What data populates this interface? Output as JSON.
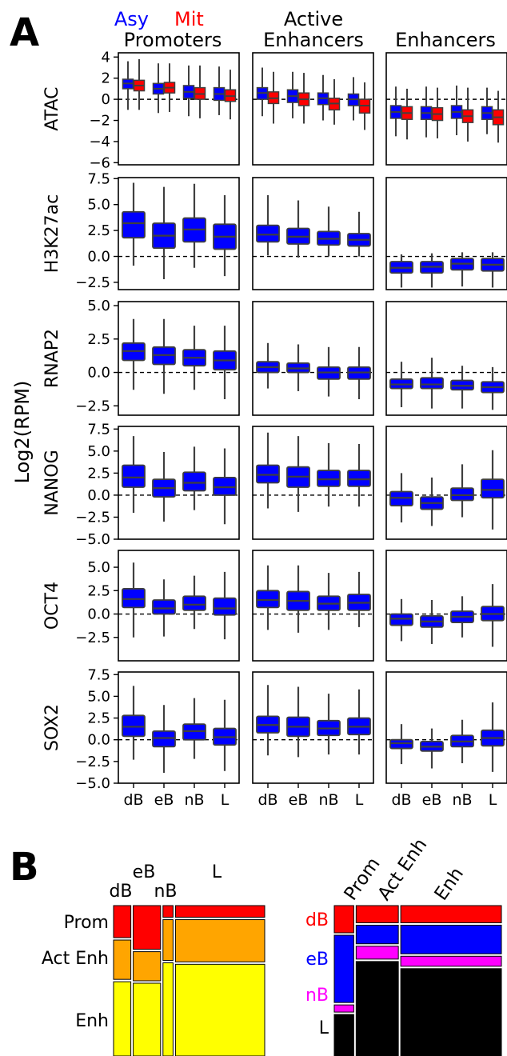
{
  "panel_labels": {
    "a": "A",
    "b": "B"
  },
  "legend": {
    "asy": "Asy",
    "mit": "Mit",
    "asy_color": "#0000ff",
    "mit_color": "#ff0000"
  },
  "chart_data": [
    {
      "type": "box",
      "ylabel": "Log2(RPM)",
      "columns": [
        "Promoters",
        "Active Enhancers",
        "Enhancers"
      ],
      "categories": [
        "dB",
        "eB",
        "nB",
        "L"
      ],
      "series": [
        {
          "name": "Asy",
          "color": "#0000ff"
        },
        {
          "name": "Mit",
          "color": "#ff0000"
        }
      ],
      "reference_line": 0,
      "rows": [
        {
          "name": "ATAC",
          "ylim": [
            -6.2,
            4.4
          ],
          "yticks": [
            4,
            2,
            0,
            -2,
            -4,
            -6
          ],
          "panels": [
            [
              [
                1.5,
                1.0,
                1.9,
                -1.0,
                3.6
              ],
              [
                1.3,
                0.8,
                1.8,
                -1.0,
                3.8
              ],
              [
                1.0,
                0.5,
                1.5,
                -1.3,
                3.4
              ],
              [
                1.1,
                0.6,
                1.6,
                -1.2,
                3.4
              ],
              [
                0.7,
                0.1,
                1.3,
                -1.6,
                3.2
              ],
              [
                0.5,
                0.0,
                1.1,
                -1.8,
                3.2
              ],
              [
                0.5,
                -0.1,
                1.1,
                -1.5,
                3.1
              ],
              [
                0.3,
                -0.2,
                0.9,
                -1.9,
                2.8
              ]
            ],
            [
              [
                0.6,
                0.0,
                1.1,
                -1.6,
                3.0
              ],
              [
                0.1,
                -0.4,
                0.7,
                -2.3,
                2.6
              ],
              [
                0.3,
                -0.3,
                0.9,
                -1.8,
                2.6
              ],
              [
                0.0,
                -0.6,
                0.6,
                -2.3,
                2.5
              ],
              [
                0.1,
                -0.5,
                0.6,
                -2.0,
                2.3
              ],
              [
                -0.4,
                -1.0,
                0.1,
                -2.4,
                1.9
              ],
              [
                0.0,
                -0.6,
                0.5,
                -2.0,
                2.1
              ],
              [
                -0.6,
                -1.3,
                0.0,
                -2.9,
                1.6
              ]
            ],
            [
              [
                -1.2,
                -1.8,
                -0.6,
                -3.5,
                1.2
              ],
              [
                -1.3,
                -1.9,
                -0.7,
                -3.8,
                1.0
              ],
              [
                -1.3,
                -1.9,
                -0.7,
                -3.6,
                1.2
              ],
              [
                -1.4,
                -2.0,
                -0.8,
                -3.7,
                1.1
              ],
              [
                -1.2,
                -1.8,
                -0.6,
                -3.4,
                1.3
              ],
              [
                -1.6,
                -2.2,
                -1.0,
                -4.0,
                1.1
              ],
              [
                -1.3,
                -1.9,
                -0.7,
                -3.3,
                1.1
              ],
              [
                -1.7,
                -2.4,
                -1.0,
                -4.1,
                0.8
              ]
            ]
          ]
        },
        {
          "name": "H3K27ac",
          "ylim": [
            -3.2,
            7.6
          ],
          "yticks": [
            7.5,
            5.0,
            2.5,
            0.0,
            -2.5
          ],
          "panels": [
            [
              [
                3.2,
                1.8,
                4.3,
                -0.9,
                7.1
              ]
            ],
            [
              [
                2.0,
                0.8,
                3.2,
                -2.2,
                6.7
              ]
            ],
            [
              [
                2.6,
                1.4,
                3.7,
                -1.1,
                7.0
              ]
            ],
            [
              [
                1.9,
                0.7,
                3.1,
                -1.9,
                5.9
              ]
            ]
          ],
          "panels_all": [
            [
              [
                3.2,
                1.8,
                4.3,
                -0.9,
                7.1
              ],
              [
                2.0,
                0.8,
                3.2,
                -2.2,
                6.7
              ],
              [
                2.6,
                1.4,
                3.7,
                -1.1,
                7.0
              ],
              [
                1.9,
                0.7,
                3.1,
                -1.9,
                5.9
              ]
            ],
            [
              [
                2.1,
                1.4,
                3.0,
                0.1,
                5.9
              ],
              [
                1.9,
                1.2,
                2.7,
                -0.1,
                5.4
              ],
              [
                1.7,
                1.1,
                2.4,
                0.0,
                4.8
              ],
              [
                1.6,
                1.0,
                2.2,
                0.0,
                4.3
              ]
            ],
            [
              [
                -1.1,
                -1.6,
                -0.5,
                -3.0,
                0.2
              ],
              [
                -1.0,
                -1.6,
                -0.5,
                -3.0,
                0.3
              ],
              [
                -0.7,
                -1.3,
                -0.2,
                -2.9,
                0.4
              ],
              [
                -0.8,
                -1.4,
                -0.2,
                -3.0,
                0.4
              ]
            ]
          ]
        },
        {
          "name": "RNAP2",
          "ylim": [
            -3.2,
            5.3
          ],
          "yticks": [
            5.0,
            2.5,
            0.0,
            -2.5
          ],
          "panels_all": [
            [
              [
                1.6,
                0.9,
                2.2,
                -1.3,
                4.0
              ],
              [
                1.3,
                0.6,
                1.9,
                -1.6,
                4.0
              ],
              [
                1.1,
                0.5,
                1.7,
                -1.3,
                3.5
              ],
              [
                0.9,
                0.2,
                1.6,
                -2.0,
                3.5
              ]
            ],
            [
              [
                0.4,
                0.0,
                0.8,
                -1.2,
                2.2
              ],
              [
                0.3,
                0.0,
                0.7,
                -1.4,
                2.1
              ],
              [
                0.0,
                -0.5,
                0.4,
                -1.8,
                1.9
              ],
              [
                0.0,
                -0.5,
                0.4,
                -2.0,
                1.9
              ]
            ],
            [
              [
                -0.9,
                -1.2,
                -0.5,
                -2.6,
                0.8
              ],
              [
                -0.9,
                -1.2,
                -0.4,
                -2.7,
                1.1
              ],
              [
                -1.0,
                -1.3,
                -0.6,
                -2.7,
                0.5
              ],
              [
                -1.1,
                -1.5,
                -0.7,
                -2.8,
                0.4
              ]
            ]
          ]
        },
        {
          "name": "NANOG",
          "ylim": [
            -5.0,
            7.8
          ],
          "yticks": [
            7.5,
            5.0,
            2.5,
            0.0,
            -2.5,
            -5.0
          ],
          "panels_all": [
            [
              [
                2.0,
                0.9,
                3.4,
                -2.0,
                6.7
              ],
              [
                0.8,
                -0.2,
                1.8,
                -3.0,
                4.9
              ],
              [
                1.4,
                0.5,
                2.6,
                -1.7,
                5.5
              ],
              [
                0.9,
                0.0,
                2.0,
                -3.3,
                5.3
              ]
            ],
            [
              [
                2.3,
                1.4,
                3.4,
                -1.5,
                7.1
              ],
              [
                2.1,
                0.9,
                3.2,
                -1.9,
                6.7
              ],
              [
                1.8,
                1.0,
                2.8,
                -1.3,
                5.9
              ],
              [
                1.8,
                1.0,
                2.8,
                -1.3,
                5.8
              ]
            ],
            [
              [
                -0.3,
                -1.2,
                0.4,
                -3.1,
                2.5
              ],
              [
                -0.9,
                -1.6,
                -0.2,
                -3.5,
                2.0
              ],
              [
                0.0,
                -0.6,
                0.8,
                -2.5,
                3.5
              ],
              [
                0.6,
                -0.3,
                1.8,
                -3.9,
                5.1
              ]
            ]
          ]
        },
        {
          "name": "OCT4",
          "ylim": [
            -5.0,
            6.8
          ],
          "yticks": [
            5.0,
            2.5,
            0.0,
            -2.5
          ],
          "panels_all": [
            [
              [
                1.6,
                0.7,
                2.7,
                -2.5,
                5.5
              ],
              [
                0.6,
                0.0,
                1.5,
                -2.4,
                3.7
              ],
              [
                1.0,
                0.4,
                1.9,
                -1.6,
                4.1
              ],
              [
                0.6,
                -0.1,
                1.7,
                -2.7,
                4.5
              ]
            ],
            [
              [
                1.5,
                0.7,
                2.5,
                -1.7,
                5.2
              ],
              [
                1.4,
                0.4,
                2.4,
                -2.0,
                5.2
              ],
              [
                1.1,
                0.4,
                1.9,
                -1.7,
                4.4
              ],
              [
                1.2,
                0.4,
                2.1,
                -1.4,
                4.5
              ]
            ],
            [
              [
                -0.5,
                -1.2,
                0.0,
                -2.9,
                1.6
              ],
              [
                -0.8,
                -1.4,
                -0.2,
                -3.2,
                1.5
              ],
              [
                -0.3,
                -0.9,
                0.3,
                -2.5,
                1.9
              ],
              [
                0.0,
                -0.7,
                0.8,
                -3.5,
                3.2
              ]
            ]
          ]
        },
        {
          "name": "SOX2",
          "ylim": [
            -5.0,
            7.8
          ],
          "yticks": [
            7.5,
            5.0,
            2.5,
            0.0,
            -2.5,
            -5.0
          ],
          "panels_all": [
            [
              [
                1.5,
                0.4,
                2.8,
                -2.3,
                6.2
              ],
              [
                0.2,
                -0.8,
                1.0,
                -3.8,
                4.0
              ],
              [
                1.0,
                0.0,
                1.8,
                -2.2,
                4.8
              ],
              [
                0.3,
                -0.6,
                1.3,
                -3.6,
                4.6
              ]
            ],
            [
              [
                1.7,
                0.8,
                2.7,
                -1.8,
                6.3
              ],
              [
                1.5,
                0.4,
                2.6,
                -2.0,
                6.1
              ],
              [
                1.3,
                0.5,
                2.2,
                -1.7,
                5.3
              ],
              [
                1.5,
                0.6,
                2.5,
                -1.7,
                5.8
              ]
            ],
            [
              [
                -0.4,
                -1.0,
                0.0,
                -2.8,
                1.8
              ],
              [
                -0.8,
                -1.3,
                -0.2,
                -3.3,
                1.3
              ],
              [
                -0.2,
                -0.8,
                0.5,
                -2.7,
                2.3
              ],
              [
                0.2,
                -0.7,
                1.1,
                -3.7,
                4.3
              ]
            ]
          ]
        }
      ]
    },
    {
      "type": "mosaic",
      "x_labels": [
        "dB",
        "eB",
        "nB",
        "L"
      ],
      "row_labels": [
        "Prom",
        "Act Enh",
        "Enh"
      ],
      "column_fractions": [
        0.12,
        0.19,
        0.07,
        0.62
      ],
      "row_fractions_by_column": [
        [
          0.22,
          0.27,
          0.51
        ],
        [
          0.3,
          0.2,
          0.5
        ],
        [
          0.08,
          0.28,
          0.64
        ],
        [
          0.08,
          0.29,
          0.63
        ]
      ],
      "colors": [
        "#ff0000",
        "#ffa500",
        "#ffff00"
      ]
    },
    {
      "type": "mosaic",
      "x_labels": [
        "Prom",
        "Act Enh",
        "Enh"
      ],
      "row_labels": [
        "dB",
        "eB",
        "nB",
        "L"
      ],
      "row_label_colors": [
        "#ff0000",
        "#0000ff",
        "#ff00ff",
        "#000000"
      ],
      "column_fractions": [
        0.12,
        0.26,
        0.62
      ],
      "row_fractions_by_column": [
        [
          0.19,
          0.47,
          0.05,
          0.29
        ],
        [
          0.12,
          0.13,
          0.09,
          0.66
        ],
        [
          0.12,
          0.2,
          0.07,
          0.61
        ]
      ],
      "colors": [
        "#ff0000",
        "#0000ff",
        "#ff00ff",
        "#000000"
      ]
    }
  ]
}
